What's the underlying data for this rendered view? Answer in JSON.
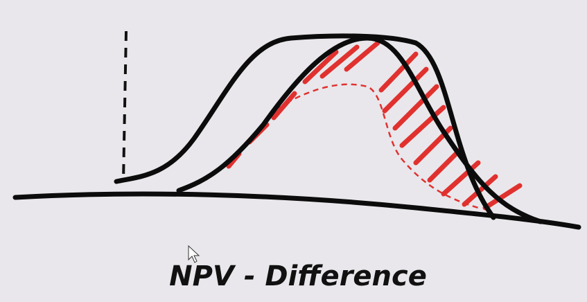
{
  "caption": "NPV - Difference"
}
